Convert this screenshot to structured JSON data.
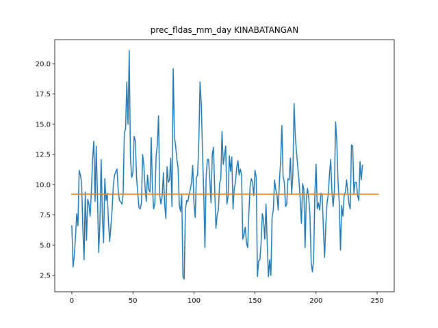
{
  "chart_data": {
    "type": "line",
    "title": "prec_fldas_mm_day KINABATANGAN",
    "xlabel": "",
    "ylabel": "",
    "xlim": [
      -14,
      264
    ],
    "ylim": [
      1.15,
      22.0
    ],
    "xticks": [
      0,
      50,
      100,
      150,
      200,
      250
    ],
    "yticks": [
      2.5,
      5.0,
      7.5,
      10.0,
      12.5,
      15.0,
      17.5,
      20.0
    ],
    "ytick_labels": [
      "2.5",
      "5.0",
      "7.5",
      "10.0",
      "12.5",
      "15.0",
      "17.5",
      "20.0"
    ],
    "grid": false,
    "legend": "none",
    "series": [
      {
        "color": "#1f77b4",
        "x_start": 0,
        "x_step": 1,
        "values": [
          6.6,
          3.2,
          4.2,
          5.7,
          7.6,
          6.6,
          11.2,
          10.8,
          10.2,
          6.4,
          3.8,
          9.4,
          5.4,
          8.8,
          8.4,
          7.4,
          9.5,
          12.1,
          13.6,
          8.6,
          13.2,
          8.9,
          4.4,
          6.9,
          12.1,
          7.4,
          5.2,
          10.5,
          8.7,
          9.3,
          6.9,
          5.3,
          6.6,
          8.0,
          10.0,
          10.8,
          11.1,
          11.3,
          9.5,
          8.7,
          8.6,
          8.4,
          9.2,
          14.3,
          14.6,
          18.5,
          15.0,
          21.1,
          12.2,
          10.6,
          11.0,
          14.0,
          13.6,
          10.6,
          9.3,
          8.1,
          8.0,
          8.5,
          12.5,
          11.6,
          9.7,
          8.6,
          10.8,
          9.6,
          9.4,
          13.9,
          9.7,
          8.0,
          8.5,
          12.4,
          13.3,
          15.7,
          9.1,
          8.4,
          9.1,
          11.0,
          8.4,
          7.2,
          11.5,
          10.2,
          10.4,
          12.2,
          8.2,
          19.6,
          14.0,
          13.2,
          12.1,
          11.4,
          8.3,
          7.8,
          9.2,
          2.4,
          2.2,
          7.9,
          8.7,
          8.6,
          9.2,
          9.6,
          10.2,
          11.6,
          8.5,
          7.3,
          10.6,
          10.8,
          13.6,
          18.5,
          16.7,
          12.8,
          9.3,
          4.8,
          10.7,
          12.1,
          12.1,
          10.4,
          8.5,
          12.5,
          13.1,
          9.6,
          6.4,
          7.5,
          7.9,
          10.1,
          10.5,
          14.4,
          11.7,
          12.4,
          13.2,
          8.4,
          9.1,
          12.4,
          11.1,
          12.3,
          8.0,
          9.7,
          10.2,
          11.4,
          12.0,
          10.8,
          11.3,
          10.8,
          5.5,
          5.9,
          6.5,
          5.2,
          4.8,
          7.7,
          9.9,
          10.5,
          10.2,
          9.1,
          11.2,
          10.6,
          2.4,
          3.7,
          3.8,
          5.2,
          7.6,
          7.1,
          5.5,
          8.4,
          5.2,
          2.4,
          3.8,
          2.5,
          7.3,
          7.9,
          10.4,
          9.6,
          9.2,
          7.9,
          10.3,
          12.0,
          14.9,
          10.7,
          10.2,
          8.2,
          8.4,
          10.5,
          10.4,
          12.2,
          9.2,
          10.8,
          16.7,
          14.0,
          12.7,
          11.5,
          10.4,
          8.8,
          6.8,
          10.1,
          9.6,
          4.8,
          8.8,
          9.7,
          8.9,
          7.5,
          3.6,
          2.8,
          3.8,
          9.2,
          11.7,
          8.0,
          8.5,
          7.9,
          9.3,
          9.2,
          6.4,
          4.0,
          6.7,
          8.5,
          9.2,
          10.9,
          12.1,
          9.4,
          8.2,
          9.5,
          15.2,
          13.6,
          10.3,
          8.5,
          4.6,
          8.3,
          7.4,
          9.1,
          9.4,
          10.4,
          9.4,
          8.4,
          8.0,
          13.3,
          13.2,
          9.3,
          10.2,
          10.2,
          9.1,
          8.7,
          11.9,
          10.4,
          11.6
        ]
      },
      {
        "color": "#ff7f0e",
        "x": [
          0,
          251
        ],
        "values": [
          9.22,
          9.22
        ]
      }
    ]
  }
}
